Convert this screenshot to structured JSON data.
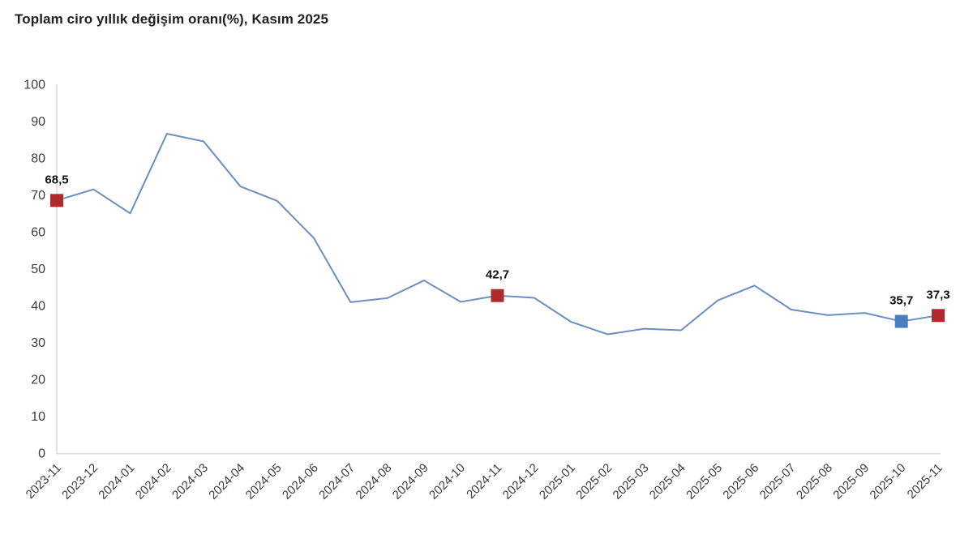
{
  "header": {
    "title": "Toplam ciro yıllık değişim oranı(%), Kasım 2025"
  },
  "colors": {
    "line": "#6b8fbf",
    "marker_red": "#b02a2b",
    "marker_blue": "#4a7ebd",
    "axis": "#d9d9d9",
    "tick_label": "#3c3c3c",
    "data_label": "#111111",
    "background": "#ffffff"
  },
  "chart_data": {
    "type": "line",
    "title": "Toplam ciro yıllık değişim oranı(%), Kasım 2025",
    "x": [
      "2023-11",
      "2023-12",
      "2024-01",
      "2024-02",
      "2024-03",
      "2024-04",
      "2024-05",
      "2024-06",
      "2024-07",
      "2024-08",
      "2024-09",
      "2024-10",
      "2024-11",
      "2024-12",
      "2025-01",
      "2025-02",
      "2025-03",
      "2025-04",
      "2025-05",
      "2025-06",
      "2025-07",
      "2025-08",
      "2025-09",
      "2025-10",
      "2025-11"
    ],
    "values": [
      68.5,
      71.5,
      65.0,
      86.6,
      84.5,
      72.3,
      68.4,
      58.3,
      40.9,
      42.0,
      46.8,
      41.0,
      42.7,
      42.1,
      35.6,
      32.2,
      33.7,
      33.3,
      41.4,
      45.4,
      38.9,
      37.4,
      38.0,
      35.7,
      37.3
    ],
    "ylim": [
      0,
      100
    ],
    "yticks": [
      0,
      10,
      20,
      30,
      40,
      50,
      60,
      70,
      80,
      90,
      100
    ],
    "grid": false,
    "legend": "none",
    "xlabel": "",
    "ylabel": "",
    "annotated_points": [
      {
        "x": "2023-11",
        "value": 68.5,
        "label": "68,5",
        "marker_color": "#b02a2b"
      },
      {
        "x": "2024-11",
        "value": 42.7,
        "label": "42,7",
        "marker_color": "#b02a2b"
      },
      {
        "x": "2025-10",
        "value": 35.7,
        "label": "35,7",
        "marker_color": "#4a7ebd"
      },
      {
        "x": "2025-11",
        "value": 37.3,
        "label": "37,3",
        "marker_color": "#b02a2b"
      }
    ]
  }
}
